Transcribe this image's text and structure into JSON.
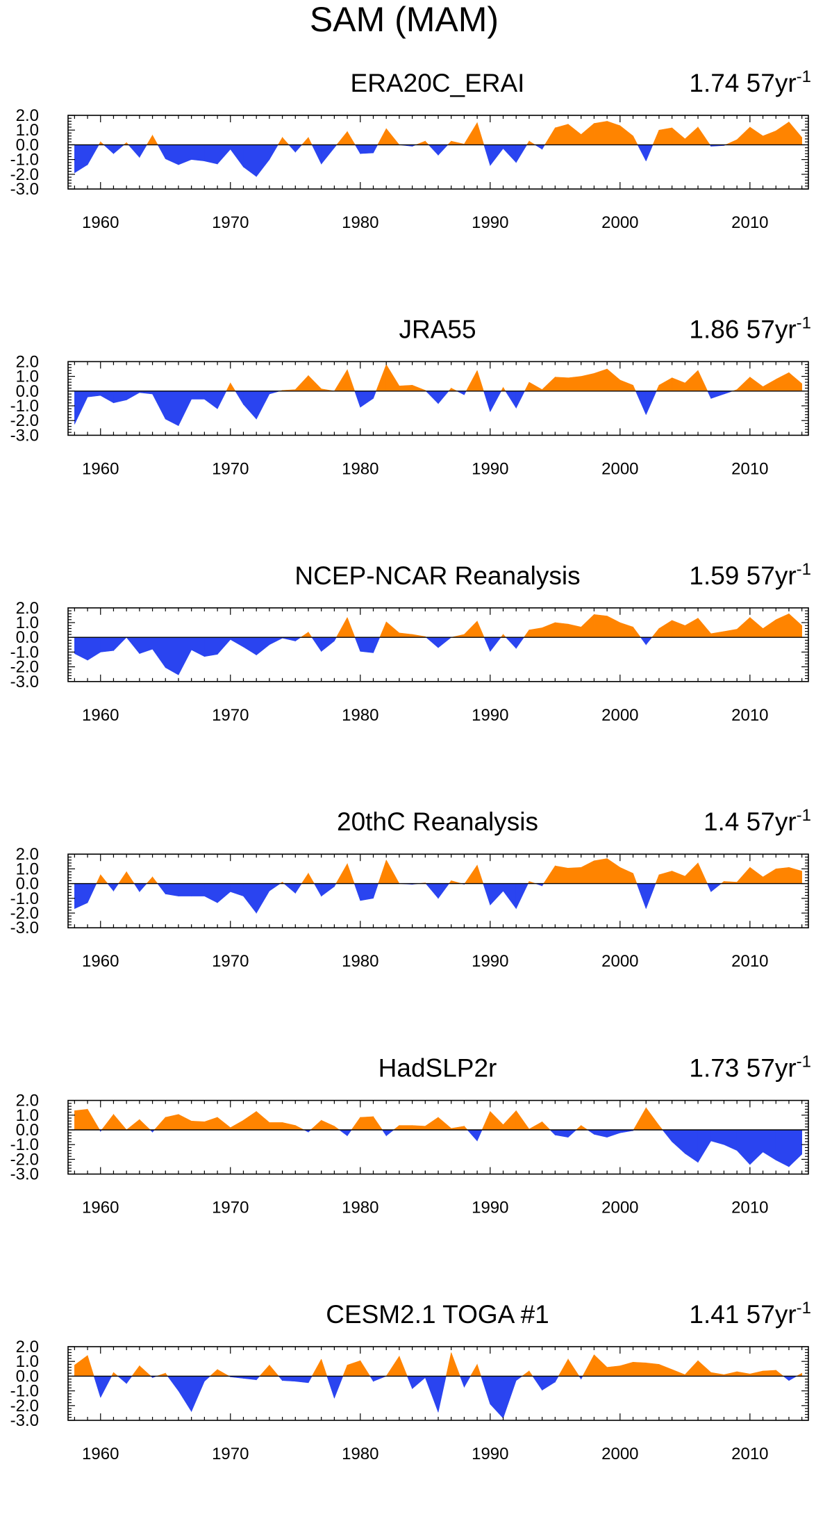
{
  "figure_title": "SAM (MAM)",
  "colors": {
    "positive": "#ff8400",
    "negative": "#2a44f0",
    "axis": "#000000"
  },
  "trend_unit": "57yr",
  "trend_exponent": "-1",
  "chart_data": [
    {
      "type": "area",
      "title": "ERA20C_ERAI",
      "trend": "1.74",
      "x": [
        1958,
        1959,
        1960,
        1961,
        1962,
        1963,
        1964,
        1965,
        1966,
        1967,
        1968,
        1969,
        1970,
        1971,
        1972,
        1973,
        1974,
        1975,
        1976,
        1977,
        1978,
        1979,
        1980,
        1981,
        1982,
        1983,
        1984,
        1985,
        1986,
        1987,
        1988,
        1989,
        1990,
        1991,
        1992,
        1993,
        1994,
        1995,
        1996,
        1997,
        1998,
        1999,
        2000,
        2001,
        2002,
        2003,
        2004,
        2005,
        2006,
        2007,
        2008,
        2009,
        2010,
        2011,
        2012,
        2013,
        2014
      ],
      "values": [
        -1.9,
        -1.35,
        0.2,
        -0.6,
        0.15,
        -0.85,
        0.65,
        -0.95,
        -1.35,
        -1.0,
        -1.1,
        -1.3,
        -0.3,
        -1.5,
        -2.15,
        -1.0,
        0.5,
        -0.5,
        0.5,
        -1.3,
        -0.2,
        0.9,
        -0.6,
        -0.55,
        1.1,
        0.0,
        -0.1,
        0.25,
        -0.7,
        0.25,
        0.05,
        1.5,
        -1.4,
        -0.25,
        -1.2,
        0.25,
        -0.3,
        1.15,
        1.4,
        0.7,
        1.45,
        1.6,
        1.3,
        0.6,
        -1.1,
        1.0,
        1.15,
        0.4,
        1.2,
        -0.1,
        -0.05,
        0.35,
        1.2,
        0.6,
        0.95,
        1.55,
        0.5
      ],
      "xticks": [
        1960,
        1970,
        1980,
        1990,
        2000,
        2010
      ],
      "yticks": [
        "2.0",
        "1.0",
        "0.0",
        "-1.0",
        "-2.0",
        "-3.0"
      ],
      "ylim": [
        -3,
        2
      ],
      "xlim": [
        1957.5,
        2014.5
      ]
    },
    {
      "type": "area",
      "title": "JRA55",
      "trend": "1.86",
      "x": [
        1958,
        1959,
        1960,
        1961,
        1962,
        1963,
        1964,
        1965,
        1966,
        1967,
        1968,
        1969,
        1970,
        1971,
        1972,
        1973,
        1974,
        1975,
        1976,
        1977,
        1978,
        1979,
        1980,
        1981,
        1982,
        1983,
        1984,
        1985,
        1986,
        1987,
        1988,
        1989,
        1990,
        1991,
        1992,
        1993,
        1994,
        1995,
        1996,
        1997,
        1998,
        1999,
        2000,
        2001,
        2002,
        2003,
        2004,
        2005,
        2006,
        2007,
        2008,
        2009,
        2010,
        2011,
        2012,
        2013,
        2014
      ],
      "values": [
        -2.25,
        -0.4,
        -0.3,
        -0.8,
        -0.6,
        -0.1,
        -0.2,
        -1.9,
        -2.35,
        -0.55,
        -0.55,
        -1.2,
        0.55,
        -0.9,
        -1.9,
        -0.2,
        0.05,
        0.1,
        1.05,
        0.15,
        0.0,
        1.45,
        -1.1,
        -0.5,
        1.8,
        0.35,
        0.4,
        0.05,
        -0.85,
        0.2,
        -0.25,
        1.4,
        -1.4,
        0.25,
        -1.15,
        0.6,
        0.1,
        0.95,
        0.9,
        1.0,
        1.2,
        1.5,
        0.75,
        0.4,
        -1.6,
        0.4,
        0.9,
        0.55,
        1.4,
        -0.5,
        -0.2,
        0.1,
        0.95,
        0.3,
        0.8,
        1.25,
        0.5
      ],
      "xticks": [
        1960,
        1970,
        1980,
        1990,
        2000,
        2010
      ],
      "yticks": [
        "2.0",
        "1.0",
        "0.0",
        "-1.0",
        "-2.0",
        "-3.0"
      ],
      "ylim": [
        -3,
        2
      ],
      "xlim": [
        1957.5,
        2014.5
      ]
    },
    {
      "type": "area",
      "title": "NCEP-NCAR Reanalysis",
      "trend": "1.59",
      "x": [
        1958,
        1959,
        1960,
        1961,
        1962,
        1963,
        1964,
        1965,
        1966,
        1967,
        1968,
        1969,
        1970,
        1971,
        1972,
        1973,
        1974,
        1975,
        1976,
        1977,
        1978,
        1979,
        1980,
        1981,
        1982,
        1983,
        1984,
        1985,
        1986,
        1987,
        1988,
        1989,
        1990,
        1991,
        1992,
        1993,
        1994,
        1995,
        1996,
        1997,
        1998,
        1999,
        2000,
        2001,
        2002,
        2003,
        2004,
        2005,
        2006,
        2007,
        2008,
        2009,
        2010,
        2011,
        2012,
        2013,
        2014
      ],
      "values": [
        -1.1,
        -1.55,
        -1.0,
        -0.9,
        0.0,
        -1.1,
        -0.8,
        -2.05,
        -2.55,
        -0.85,
        -1.3,
        -1.15,
        -0.15,
        -0.65,
        -1.2,
        -0.5,
        -0.05,
        -0.25,
        0.35,
        -0.95,
        -0.25,
        1.35,
        -0.95,
        -1.05,
        1.05,
        0.3,
        0.2,
        0.05,
        -0.7,
        0.0,
        0.2,
        1.1,
        -0.95,
        0.2,
        -0.75,
        0.5,
        0.65,
        1.0,
        0.9,
        0.7,
        1.55,
        1.45,
        1.0,
        0.7,
        -0.5,
        0.6,
        1.15,
        0.8,
        1.3,
        0.25,
        0.4,
        0.55,
        1.35,
        0.6,
        1.2,
        1.6,
        0.8
      ],
      "xticks": [
        1960,
        1970,
        1980,
        1990,
        2000,
        2010
      ],
      "yticks": [
        "2.0",
        "1.0",
        "0.0",
        "-1.0",
        "-2.0",
        "-3.0"
      ],
      "ylim": [
        -3,
        2
      ],
      "xlim": [
        1957.5,
        2014.5
      ]
    },
    {
      "type": "area",
      "title": "20thC Reanalysis",
      "trend": "1.4",
      "x": [
        1958,
        1959,
        1960,
        1961,
        1962,
        1963,
        1964,
        1965,
        1966,
        1967,
        1968,
        1969,
        1970,
        1971,
        1972,
        1973,
        1974,
        1975,
        1976,
        1977,
        1978,
        1979,
        1980,
        1981,
        1982,
        1983,
        1984,
        1985,
        1986,
        1987,
        1988,
        1989,
        1990,
        1991,
        1992,
        1993,
        1994,
        1995,
        1996,
        1997,
        1998,
        1999,
        2000,
        2001,
        2002,
        2003,
        2004,
        2005,
        2006,
        2007,
        2008,
        2009,
        2010,
        2011,
        2012,
        2013,
        2014
      ],
      "values": [
        -1.7,
        -1.3,
        0.6,
        -0.5,
        0.8,
        -0.55,
        0.45,
        -0.7,
        -0.85,
        -0.85,
        -0.85,
        -1.3,
        -0.55,
        -0.85,
        -2.0,
        -0.5,
        0.1,
        -0.65,
        0.7,
        -0.85,
        -0.2,
        1.35,
        -1.15,
        -1.0,
        1.6,
        0.0,
        -0.05,
        0.05,
        -1.0,
        0.2,
        -0.05,
        1.25,
        -1.45,
        -0.5,
        -1.7,
        0.15,
        -0.15,
        1.2,
        1.05,
        1.1,
        1.55,
        1.7,
        1.1,
        0.7,
        -1.7,
        0.6,
        0.85,
        0.5,
        1.4,
        -0.55,
        0.15,
        0.1,
        1.1,
        0.45,
        1.0,
        1.1,
        0.85
      ],
      "xticks": [
        1960,
        1970,
        1980,
        1990,
        2000,
        2010
      ],
      "yticks": [
        "2.0",
        "1.0",
        "0.0",
        "-1.0",
        "-2.0",
        "-3.0"
      ],
      "ylim": [
        -3,
        2
      ],
      "xlim": [
        1957.5,
        2014.5
      ]
    },
    {
      "type": "area",
      "title": "HadSLP2r",
      "trend": "1.73",
      "x": [
        1958,
        1959,
        1960,
        1961,
        1962,
        1963,
        1964,
        1965,
        1966,
        1967,
        1968,
        1969,
        1970,
        1971,
        1972,
        1973,
        1974,
        1975,
        1976,
        1977,
        1978,
        1979,
        1980,
        1981,
        1982,
        1983,
        1984,
        1985,
        1986,
        1987,
        1988,
        1989,
        1990,
        1991,
        1992,
        1993,
        1994,
        1995,
        1996,
        1997,
        1998,
        1999,
        2000,
        2001,
        2002,
        2003,
        2004,
        2005,
        2006,
        2007,
        2008,
        2009,
        2010,
        2011,
        2012,
        2013,
        2014
      ],
      "values": [
        1.3,
        1.4,
        -0.1,
        1.05,
        0.0,
        0.7,
        -0.15,
        0.85,
        1.05,
        0.6,
        0.55,
        0.85,
        0.15,
        0.65,
        1.25,
        0.5,
        0.5,
        0.3,
        -0.15,
        0.65,
        0.25,
        -0.4,
        0.85,
        0.9,
        -0.4,
        0.3,
        0.3,
        0.25,
        0.85,
        0.1,
        0.25,
        -0.75,
        1.25,
        0.35,
        1.3,
        0.05,
        0.55,
        -0.35,
        -0.5,
        0.3,
        -0.3,
        -0.5,
        -0.2,
        -0.05,
        1.5,
        0.3,
        -0.8,
        -1.6,
        -2.2,
        -0.75,
        -1.0,
        -1.4,
        -2.35,
        -1.5,
        -2.05,
        -2.5,
        -1.65
      ],
      "xticks": [
        1960,
        1970,
        1980,
        1990,
        2000,
        2010
      ],
      "yticks": [
        "2.0",
        "1.0",
        "0.0",
        "-1.0",
        "-2.0",
        "-3.0"
      ],
      "ylim": [
        -3,
        2
      ],
      "xlim": [
        1957.5,
        2014.5
      ]
    },
    {
      "type": "area",
      "title": "CESM2.1 TOGA #1",
      "trend": "1.41",
      "x": [
        1958,
        1959,
        1960,
        1961,
        1962,
        1963,
        1964,
        1965,
        1966,
        1967,
        1968,
        1969,
        1970,
        1971,
        1972,
        1973,
        1974,
        1975,
        1976,
        1977,
        1978,
        1979,
        1980,
        1981,
        1982,
        1983,
        1984,
        1985,
        1986,
        1987,
        1988,
        1989,
        1990,
        1991,
        1992,
        1993,
        1994,
        1995,
        1996,
        1997,
        1998,
        1999,
        2000,
        2001,
        2002,
        2003,
        2004,
        2005,
        2006,
        2007,
        2008,
        2009,
        2010,
        2011,
        2012,
        2013,
        2014
      ],
      "values": [
        0.75,
        1.4,
        -1.45,
        0.25,
        -0.5,
        0.7,
        -0.1,
        0.2,
        -1.0,
        -2.4,
        -0.35,
        0.45,
        -0.05,
        -0.15,
        -0.25,
        0.75,
        -0.3,
        -0.35,
        -0.45,
        1.15,
        -1.5,
        0.75,
        1.05,
        -0.35,
        0.0,
        1.35,
        -0.85,
        -0.1,
        -2.45,
        1.6,
        -0.75,
        0.8,
        -1.9,
        -2.85,
        -0.3,
        0.35,
        -0.95,
        -0.4,
        1.15,
        -0.2,
        1.45,
        0.6,
        0.7,
        0.95,
        0.9,
        0.8,
        0.45,
        0.1,
        1.05,
        0.25,
        0.1,
        0.3,
        0.15,
        0.35,
        0.4,
        -0.3,
        0.2
      ],
      "xticks": [
        1960,
        1970,
        1980,
        1990,
        2000,
        2010
      ],
      "yticks": [
        "2.0",
        "1.0",
        "0.0",
        "-1.0",
        "-2.0",
        "-3.0"
      ],
      "ylim": [
        -3,
        2
      ],
      "xlim": [
        1957.5,
        2014.5
      ]
    }
  ]
}
